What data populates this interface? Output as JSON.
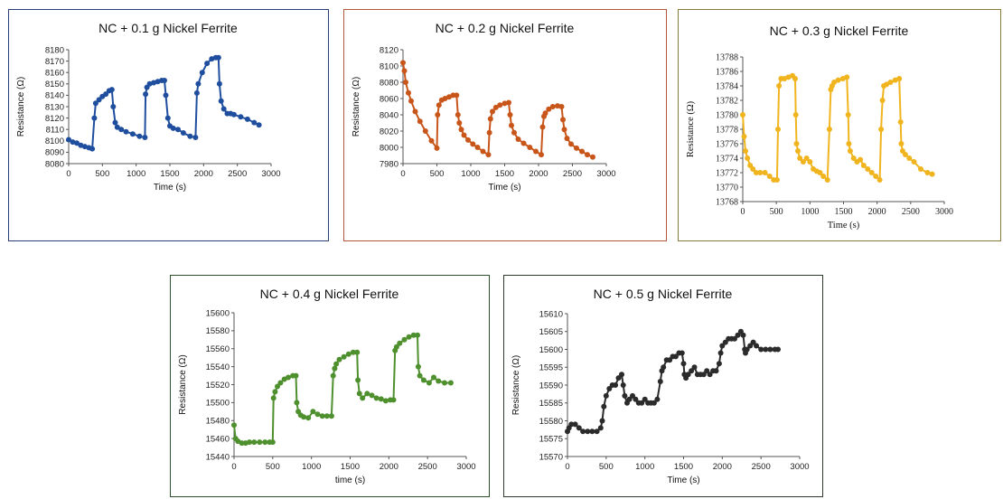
{
  "chart_data": [
    {
      "type": "line",
      "title": "NC + 0.1 g Nickel Ferrite",
      "xlabel": "Time (s)",
      "ylabel": "Resistance (Ω)",
      "color": "#1f4e9e",
      "frame_color": "#2a3f7a",
      "xlim": [
        0,
        3000
      ],
      "ylim": [
        8080,
        8180
      ],
      "xticks": [
        "0",
        "500",
        "1000",
        "1500",
        "2000",
        "2500",
        "3000"
      ],
      "yticks": [
        "8080",
        "8090",
        "8100",
        "8110",
        "8120",
        "8130",
        "8140",
        "8150",
        "8160",
        "8170",
        "8180"
      ],
      "series": [
        {
          "x": [
            0,
            60,
            120,
            180,
            240,
            300,
            350,
            380,
            400,
            450,
            500,
            550,
            600,
            640,
            660,
            690,
            720,
            780,
            850,
            950,
            1050,
            1130,
            1140,
            1160,
            1200,
            1260,
            1320,
            1380,
            1420,
            1440,
            1470,
            1500,
            1550,
            1620,
            1700,
            1800,
            1880,
            1900,
            1920,
            1980,
            2050,
            2120,
            2180,
            2220,
            2235,
            2260,
            2300,
            2350,
            2400,
            2450,
            2550,
            2650,
            2750,
            2820
          ],
          "y": [
            8101,
            8099,
            8098,
            8096,
            8095,
            8094,
            8093,
            8120,
            8133,
            8136,
            8139,
            8141,
            8144,
            8145,
            8130,
            8116,
            8112,
            8110,
            8108,
            8106,
            8104,
            8103,
            8141,
            8147,
            8150,
            8151,
            8152,
            8153,
            8153,
            8140,
            8120,
            8113,
            8111,
            8110,
            8107,
            8104,
            8103,
            8142,
            8150,
            8160,
            8168,
            8172,
            8173,
            8173,
            8150,
            8135,
            8128,
            8124,
            8124,
            8123,
            8121,
            8119,
            8116,
            8114
          ]
        }
      ]
    },
    {
      "type": "line",
      "title": "NC + 0.2 g Nickel Ferrite",
      "xlabel": "Time (s)",
      "ylabel": "Resistance (Ω)",
      "color": "#c8561b",
      "frame_color": "#b0583a",
      "xlim": [
        0,
        3000
      ],
      "ylim": [
        7980,
        8120
      ],
      "xticks": [
        "0",
        "500",
        "1000",
        "1500",
        "2000",
        "2500",
        "3000"
      ],
      "yticks": [
        "7980",
        "8000",
        "8020",
        "8040",
        "8060",
        "8080",
        "8100",
        "8120"
      ],
      "series": [
        {
          "x": [
            0,
            20,
            40,
            80,
            120,
            180,
            250,
            330,
            420,
            500,
            510,
            530,
            570,
            620,
            680,
            740,
            790,
            810,
            830,
            860,
            900,
            960,
            1030,
            1100,
            1180,
            1260,
            1275,
            1290,
            1320,
            1370,
            1430,
            1500,
            1560,
            1580,
            1600,
            1640,
            1700,
            1780,
            1870,
            1960,
            2040,
            2060,
            2080,
            2100,
            2150,
            2210,
            2280,
            2340,
            2360,
            2380,
            2420,
            2480,
            2560,
            2640,
            2720,
            2800
          ],
          "y": [
            8104,
            8094,
            8080,
            8067,
            8057,
            8044,
            8032,
            8020,
            8008,
            7999,
            8040,
            8052,
            8058,
            8060,
            8062,
            8064,
            8064,
            8040,
            8030,
            8022,
            8015,
            8009,
            8004,
            8000,
            7995,
            7991,
            8018,
            8035,
            8044,
            8049,
            8052,
            8054,
            8055,
            8040,
            8027,
            8018,
            8010,
            8005,
            8000,
            7995,
            7991,
            8025,
            8038,
            8042,
            8047,
            8050,
            8051,
            8050,
            8034,
            8022,
            8011,
            8004,
            7999,
            7995,
            7991,
            7988
          ]
        }
      ]
    },
    {
      "type": "line",
      "title": "NC + 0.3 g Nickel Ferrite",
      "xlabel": "Time (s)",
      "ylabel": "Resistance (Ω)",
      "color": "#f0b41e",
      "frame_color": "#8a7a3a",
      "xlim": [
        0,
        3000
      ],
      "ylim": [
        13768,
        13788
      ],
      "xticks": [
        "0",
        "500",
        "1000",
        "1500",
        "2000",
        "2500",
        "3000"
      ],
      "yticks": [
        "13768",
        "13770",
        "13772",
        "13774",
        "13776",
        "13778",
        "13780",
        "13782",
        "13784",
        "13786",
        "13788"
      ],
      "series": [
        {
          "x": [
            0,
            20,
            40,
            70,
            110,
            150,
            200,
            260,
            330,
            400,
            460,
            510,
            525,
            540,
            570,
            620,
            680,
            740,
            780,
            790,
            800,
            820,
            850,
            900,
            950,
            1000,
            1050,
            1100,
            1150,
            1200,
            1260,
            1290,
            1310,
            1330,
            1360,
            1420,
            1490,
            1550,
            1570,
            1580,
            1600,
            1650,
            1700,
            1750,
            1800,
            1860,
            1920,
            1980,
            2040,
            2060,
            2080,
            2100,
            2140,
            2200,
            2270,
            2330,
            2350,
            2360,
            2380,
            2420,
            2480,
            2550,
            2650,
            2750,
            2820
          ],
          "y": [
            13780,
            13777,
            13775,
            13774,
            13773,
            13772.5,
            13772,
            13772,
            13772,
            13771.5,
            13771,
            13771,
            13778,
            13784,
            13785,
            13785,
            13785.2,
            13785.4,
            13785,
            13780,
            13776,
            13775,
            13774,
            13773.5,
            13774,
            13773.5,
            13772.5,
            13772.2,
            13772,
            13771.5,
            13771,
            13778,
            13783.5,
            13784,
            13784.5,
            13784.8,
            13785,
            13785.2,
            13780,
            13776,
            13775,
            13774,
            13773.5,
            13773.8,
            13773,
            13772.5,
            13772,
            13771.5,
            13771,
            13778,
            13782,
            13784,
            13784.2,
            13784.5,
            13784.8,
            13785,
            13779,
            13776,
            13775,
            13774.5,
            13774,
            13773.5,
            13772.5,
            13772,
            13771.8
          ]
        }
      ]
    },
    {
      "type": "line",
      "title": "NC + 0.4 g Nickel Ferrite",
      "xlabel": "time (s)",
      "ylabel": "Resistance (Ω)",
      "color": "#4e8f2e",
      "frame_color": "#2e4f2e",
      "xlim": [
        0,
        3000
      ],
      "ylim": [
        15440,
        15600
      ],
      "xticks": [
        "0",
        "500",
        "1000",
        "1500",
        "2000",
        "2500",
        "3000"
      ],
      "yticks": [
        "15440",
        "15460",
        "15480",
        "15500",
        "15520",
        "15540",
        "15560",
        "15580",
        "15600"
      ],
      "series": [
        {
          "x": [
            0,
            20,
            50,
            100,
            150,
            200,
            260,
            330,
            400,
            460,
            500,
            510,
            530,
            560,
            600,
            650,
            700,
            760,
            800,
            810,
            830,
            860,
            900,
            960,
            1020,
            1080,
            1140,
            1200,
            1260,
            1280,
            1300,
            1320,
            1360,
            1420,
            1480,
            1540,
            1590,
            1600,
            1620,
            1660,
            1720,
            1780,
            1840,
            1900,
            1960,
            2020,
            2060,
            2080,
            2100,
            2140,
            2200,
            2260,
            2320,
            2370,
            2380,
            2400,
            2450,
            2520,
            2580,
            2640,
            2720,
            2800
          ],
          "y": [
            15475,
            15460,
            15457,
            15455,
            15455,
            15456,
            15456,
            15456,
            15456,
            15456,
            15456,
            15505,
            15512,
            15518,
            15522,
            15526,
            15528,
            15530,
            15530,
            15500,
            15490,
            15486,
            15484,
            15483,
            15490,
            15487,
            15485,
            15485,
            15485,
            15530,
            15538,
            15543,
            15548,
            15551,
            15554,
            15556,
            15556,
            15525,
            15510,
            15505,
            15510,
            15508,
            15505,
            15504,
            15502,
            15503,
            15503,
            15558,
            15562,
            15566,
            15570,
            15573,
            15575,
            15575,
            15540,
            15530,
            15525,
            15522,
            15528,
            15524,
            15522,
            15522
          ]
        }
      ]
    },
    {
      "type": "line",
      "title": "NC + 0.5 g Nickel Ferrite",
      "xlabel": "Time (s)",
      "ylabel": "Resistance (Ω)",
      "color": "#2b2b2b",
      "frame_color": "#2f3a2f",
      "xlim": [
        0,
        3000
      ],
      "ylim": [
        15570,
        15610
      ],
      "xticks": [
        "0",
        "500",
        "1000",
        "1500",
        "2000",
        "2500",
        "3000"
      ],
      "yticks": [
        "15570",
        "15575",
        "15580",
        "15585",
        "15590",
        "15595",
        "15600",
        "15605",
        "15610"
      ],
      "series": [
        {
          "x": [
            0,
            20,
            50,
            100,
            150,
            200,
            260,
            320,
            380,
            430,
            450,
            470,
            500,
            540,
            580,
            620,
            660,
            700,
            720,
            740,
            770,
            800,
            840,
            880,
            920,
            960,
            1000,
            1040,
            1080,
            1120,
            1160,
            1200,
            1220,
            1240,
            1280,
            1320,
            1360,
            1400,
            1440,
            1480,
            1500,
            1510,
            1530,
            1560,
            1600,
            1640,
            1680,
            1720,
            1760,
            1800,
            1840,
            1880,
            1920,
            1960,
            1980,
            2000,
            2040,
            2080,
            2120,
            2160,
            2200,
            2240,
            2270,
            2290,
            2300,
            2320,
            2360,
            2400,
            2440,
            2500,
            2560,
            2620,
            2680,
            2720
          ],
          "y": [
            15577,
            15578,
            15579,
            15579,
            15578,
            15577,
            15577,
            15577,
            15577,
            15578,
            15580,
            15584,
            15587,
            15589,
            15590,
            15590,
            15592,
            15593,
            15590,
            15587,
            15585,
            15586,
            15587,
            15586,
            15585,
            15585,
            15586,
            15585,
            15585,
            15585,
            15586,
            15591,
            15594,
            15595,
            15597,
            15597,
            15598,
            15598,
            15599,
            15599,
            15596,
            15593,
            15592,
            15593,
            15594,
            15595,
            15593,
            15593,
            15593,
            15594,
            15593,
            15594,
            15594,
            15596,
            15599,
            15601,
            15602,
            15603,
            15603,
            15603,
            15604,
            15605,
            15604,
            15600,
            15599,
            15600,
            15601,
            15602,
            15601,
            15600,
            15600,
            15600,
            15600,
            15600
          ]
        }
      ]
    }
  ]
}
